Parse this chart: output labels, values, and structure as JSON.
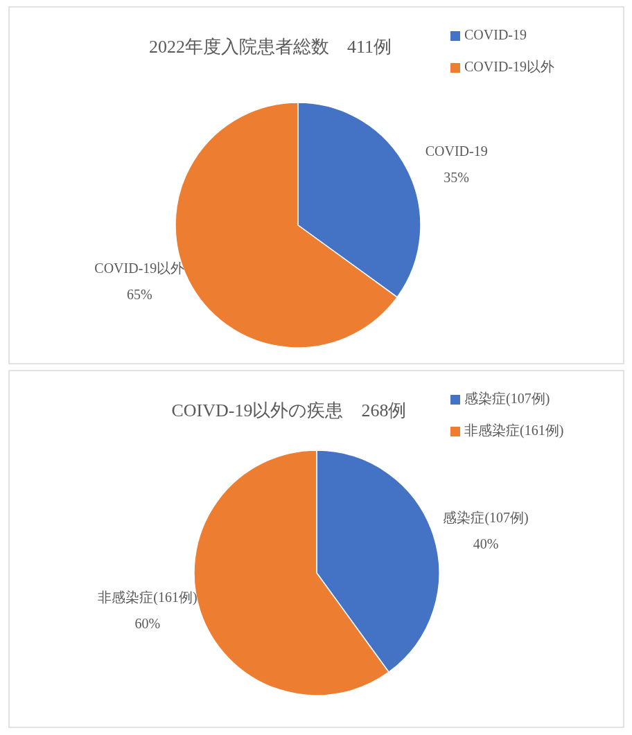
{
  "chart_data": [
    {
      "type": "pie",
      "title": "2022年度入院患者総数　411例",
      "categories": [
        "COVID-19",
        "COVID-19以外"
      ],
      "values": [
        35,
        65
      ],
      "value_labels": [
        "35%",
        "65%"
      ],
      "colors": [
        "#4472c4",
        "#ed7d31"
      ],
      "legend": "top right"
    },
    {
      "type": "pie",
      "title": "COIVD-19以外の疾患　268例",
      "categories": [
        "感染症(107例)",
        "非感染症(161例)"
      ],
      "values": [
        40,
        60
      ],
      "value_labels": [
        "40%",
        "60%"
      ],
      "colors": [
        "#4472c4",
        "#ed7d31"
      ],
      "legend": "top right"
    }
  ]
}
